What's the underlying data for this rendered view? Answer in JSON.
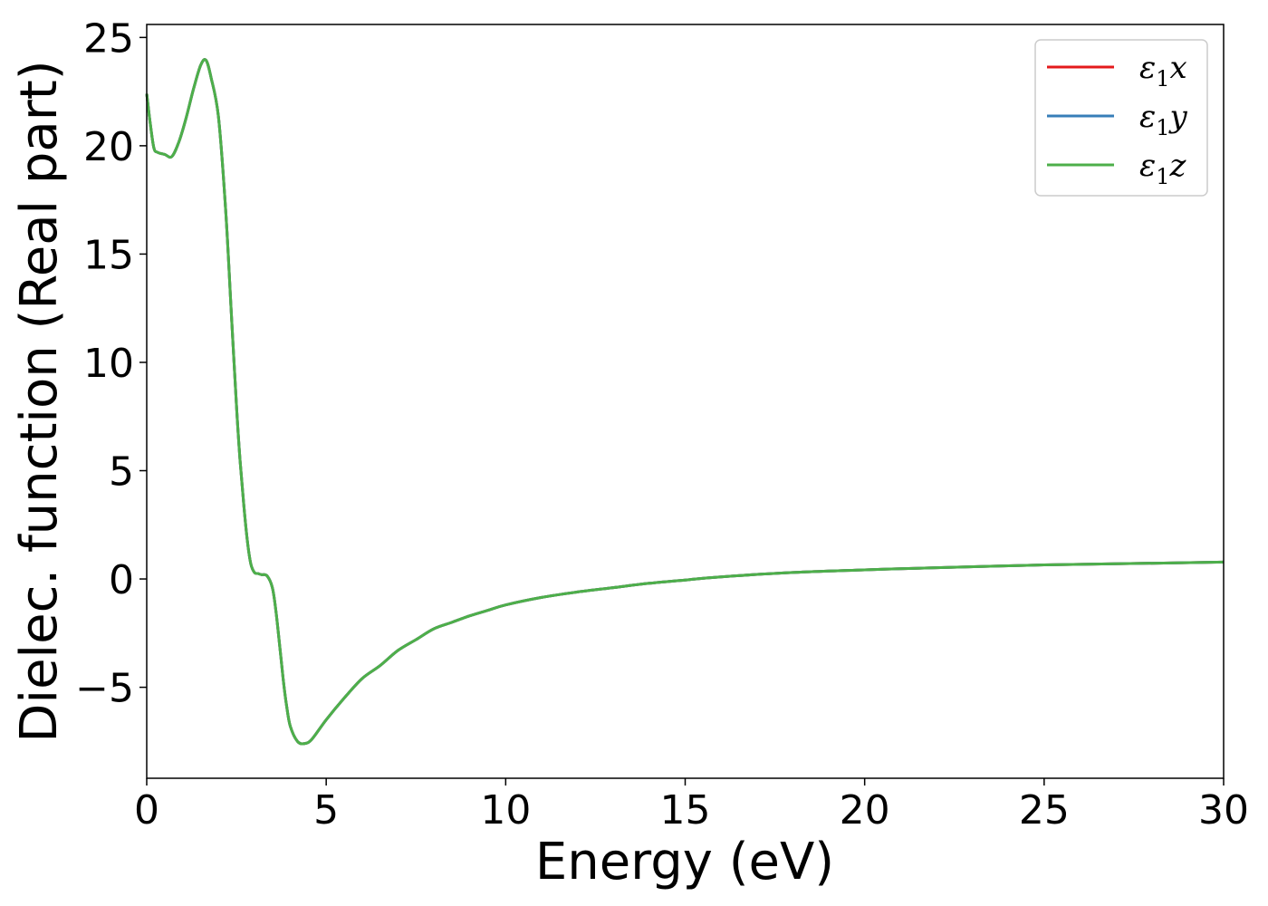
{
  "chart_data": {
    "type": "line",
    "title": "",
    "xlabel": "Energy (eV)",
    "ylabel": "Dielec. function (Real part)",
    "xlim": [
      0,
      30
    ],
    "ylim": [
      -9.2,
      25.6
    ],
    "xticks": [
      0,
      5,
      10,
      15,
      20,
      25,
      30
    ],
    "yticks": [
      -5,
      0,
      5,
      10,
      15,
      20,
      25
    ],
    "grid": false,
    "legend_position": "top-right",
    "x": [
      0,
      0.1,
      0.2,
      0.3,
      0.5,
      0.7,
      0.9,
      1.1,
      1.3,
      1.5,
      1.65,
      1.8,
      2.0,
      2.2,
      2.35,
      2.5,
      2.6,
      2.7,
      2.8,
      2.9,
      3.0,
      3.1,
      3.2,
      3.35,
      3.5,
      3.6,
      3.7,
      3.8,
      3.9,
      4.0,
      4.2,
      4.4,
      4.6,
      5.0,
      5.5,
      6.0,
      6.5,
      7.0,
      7.5,
      8.0,
      8.5,
      9.0,
      9.5,
      10,
      11,
      12,
      13,
      14,
      15,
      16,
      18,
      20,
      22,
      25,
      27,
      30
    ],
    "series": [
      {
        "name": "ε1x",
        "label_base": "ε",
        "label_sub": "1",
        "label_suffix": "x",
        "color": "#e41a1c",
        "values": [
          22.4,
          21.0,
          19.9,
          19.7,
          19.6,
          19.5,
          20.2,
          21.3,
          22.6,
          23.7,
          23.95,
          23.1,
          21.3,
          17.0,
          12.5,
          8.0,
          5.5,
          3.5,
          1.8,
          0.7,
          0.3,
          0.25,
          0.2,
          0.15,
          -0.4,
          -1.5,
          -3.0,
          -4.6,
          -5.9,
          -6.8,
          -7.5,
          -7.6,
          -7.4,
          -6.5,
          -5.5,
          -4.6,
          -4.0,
          -3.3,
          -2.8,
          -2.3,
          -2.0,
          -1.7,
          -1.45,
          -1.2,
          -0.85,
          -0.6,
          -0.4,
          -0.2,
          -0.05,
          0.1,
          0.3,
          0.42,
          0.52,
          0.65,
          0.7,
          0.78
        ]
      },
      {
        "name": "ε1y",
        "label_base": "ε",
        "label_sub": "1",
        "label_suffix": "y",
        "color": "#377eb8",
        "values": [
          22.4,
          21.0,
          19.9,
          19.7,
          19.6,
          19.5,
          20.2,
          21.3,
          22.6,
          23.7,
          23.95,
          23.1,
          21.3,
          17.0,
          12.5,
          8.0,
          5.5,
          3.5,
          1.8,
          0.7,
          0.3,
          0.25,
          0.2,
          0.15,
          -0.4,
          -1.5,
          -3.0,
          -4.6,
          -5.9,
          -6.8,
          -7.5,
          -7.6,
          -7.4,
          -6.5,
          -5.5,
          -4.6,
          -4.0,
          -3.3,
          -2.8,
          -2.3,
          -2.0,
          -1.7,
          -1.45,
          -1.2,
          -0.85,
          -0.6,
          -0.4,
          -0.2,
          -0.05,
          0.1,
          0.3,
          0.42,
          0.52,
          0.65,
          0.7,
          0.78
        ]
      },
      {
        "name": "ε1z",
        "label_base": "ε",
        "label_sub": "1",
        "label_suffix": "z",
        "color": "#4daf4a",
        "values": [
          22.4,
          21.0,
          19.9,
          19.7,
          19.6,
          19.5,
          20.2,
          21.3,
          22.6,
          23.7,
          23.95,
          23.1,
          21.3,
          17.0,
          12.5,
          8.0,
          5.5,
          3.5,
          1.8,
          0.7,
          0.3,
          0.25,
          0.2,
          0.15,
          -0.4,
          -1.5,
          -3.0,
          -4.6,
          -5.9,
          -6.8,
          -7.5,
          -7.6,
          -7.4,
          -6.5,
          -5.5,
          -4.6,
          -4.0,
          -3.3,
          -2.8,
          -2.3,
          -2.0,
          -1.7,
          -1.45,
          -1.2,
          -0.85,
          -0.6,
          -0.4,
          -0.2,
          -0.05,
          0.1,
          0.3,
          0.42,
          0.52,
          0.65,
          0.7,
          0.78
        ]
      }
    ]
  }
}
